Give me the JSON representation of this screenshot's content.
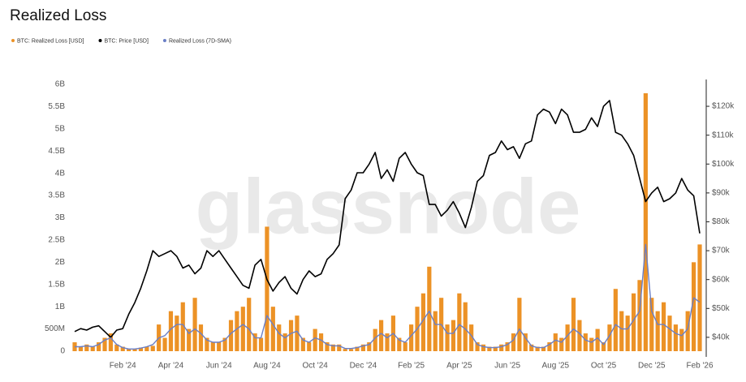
{
  "chart_data": {
    "type": "combo",
    "title": "Realized Loss",
    "watermark": "glassnode",
    "legend": "top-left",
    "grid": false,
    "categories": [
      null,
      null,
      null,
      null,
      null,
      null,
      null,
      null,
      "Feb '24",
      null,
      null,
      null,
      null,
      null,
      null,
      null,
      "Apr '24",
      null,
      null,
      null,
      null,
      null,
      null,
      null,
      "Jun '24",
      null,
      null,
      null,
      null,
      null,
      null,
      null,
      "Aug '24",
      null,
      null,
      null,
      null,
      null,
      null,
      null,
      "Oct '24",
      null,
      null,
      null,
      null,
      null,
      null,
      null,
      "Dec '24",
      null,
      null,
      null,
      null,
      null,
      null,
      null,
      "Feb '25",
      null,
      null,
      null,
      null,
      null,
      null,
      null,
      "Apr '25",
      null,
      null,
      null,
      null,
      null,
      null,
      null,
      "Jun '25",
      null,
      null,
      null,
      null,
      null,
      null,
      null,
      "Aug '25",
      null,
      null,
      null,
      null,
      null,
      null,
      null,
      "Oct '25",
      null,
      null,
      null,
      null,
      null,
      null,
      null,
      "Dec '25",
      null,
      null,
      null,
      null,
      null,
      null,
      null,
      "Feb '26"
    ],
    "ylim": [
      0,
      6000000000
    ],
    "yticks": [
      0,
      {
        "value": 500000000,
        "label": "500M"
      },
      {
        "value": 1000000000,
        "label": "1B"
      },
      {
        "value": 1500000000,
        "label": "1.5B"
      },
      {
        "value": 2000000000,
        "label": "2B"
      },
      {
        "value": 2500000000,
        "label": "2.5B"
      },
      {
        "value": 3000000000,
        "label": "3B"
      },
      {
        "value": 3500000000,
        "label": "3.5B"
      },
      {
        "value": 4000000000,
        "label": "4B"
      },
      {
        "value": 4500000000,
        "label": "4.5B"
      },
      {
        "value": 5000000000,
        "label": "5B"
      },
      {
        "value": 5500000000,
        "label": "5.5B"
      },
      {
        "value": 6000000000,
        "label": "6B"
      }
    ],
    "y2lim": [
      35200,
      127600
    ],
    "y2ticks": [
      {
        "value": 40000,
        "label": "$40k"
      },
      {
        "value": 50000,
        "label": "$50k"
      },
      {
        "value": 60000,
        "label": "$60k"
      },
      {
        "value": 70000,
        "label": "$70k"
      },
      {
        "value": 80000,
        "label": "$80k"
      },
      {
        "value": 90000,
        "label": "$90k"
      },
      {
        "value": 100000,
        "label": "$100k"
      },
      {
        "value": 110000,
        "label": "$110k"
      },
      {
        "value": 120000,
        "label": "$120k"
      }
    ],
    "series": [
      {
        "name": "BTC: Realized Loss [USD]",
        "type": "bar",
        "color": "#ec9226",
        "values": [
          200000000.0,
          100000000.0,
          150000000.0,
          100000000.0,
          200000000.0,
          300000000.0,
          400000000.0,
          150000000.0,
          100000000.0,
          50000000.0,
          50000000.0,
          80000000.0,
          100000000.0,
          120000000.0,
          600000000.0,
          300000000.0,
          900000000.0,
          800000000.0,
          1100000000.0,
          500000000.0,
          1200000000.0,
          600000000.0,
          300000000.0,
          200000000.0,
          200000000.0,
          300000000.0,
          700000000.0,
          900000000.0,
          1000000000.0,
          1200000000.0,
          400000000.0,
          300000000.0,
          2800000000.0,
          1000000000.0,
          600000000.0,
          400000000.0,
          700000000.0,
          800000000.0,
          300000000.0,
          200000000.0,
          500000000.0,
          400000000.0,
          200000000.0,
          150000000.0,
          150000000.0,
          50000000.0,
          50000000.0,
          100000000.0,
          150000000.0,
          200000000.0,
          500000000.0,
          700000000.0,
          400000000.0,
          800000000.0,
          300000000.0,
          200000000.0,
          600000000.0,
          1000000000.0,
          1300000000.0,
          1900000000.0,
          900000000.0,
          1200000000.0,
          600000000.0,
          700000000.0,
          1300000000.0,
          1100000000.0,
          600000000.0,
          200000000.0,
          150000000.0,
          100000000.0,
          100000000.0,
          150000000.0,
          200000000.0,
          400000000.0,
          1200000000.0,
          400000000.0,
          150000000.0,
          100000000.0,
          100000000.0,
          200000000.0,
          400000000.0,
          300000000.0,
          600000000.0,
          1200000000.0,
          700000000.0,
          400000000.0,
          300000000.0,
          500000000.0,
          200000000.0,
          600000000.0,
          1400000000.0,
          900000000.0,
          800000000.0,
          1300000000.0,
          1600000000.0,
          5800000000.0,
          1200000000.0,
          900000000.0,
          1100000000.0,
          800000000.0,
          600000000.0,
          500000000.0,
          900000000.0,
          2000000000.0,
          2400000000.0
        ]
      },
      {
        "name": "BTC: Price [USD]",
        "type": "line",
        "axis": "y2",
        "color": "#000000",
        "values": [
          42000,
          43000,
          42500,
          43500,
          44000,
          42000,
          40000,
          42500,
          43000,
          48000,
          52000,
          57000,
          63000,
          70000,
          68000,
          69000,
          70000,
          68000,
          64000,
          65000,
          62000,
          64000,
          70000,
          68000,
          70000,
          67000,
          64000,
          61000,
          58000,
          57000,
          65000,
          67000,
          60000,
          56000,
          59000,
          61000,
          57000,
          55000,
          60000,
          63000,
          61000,
          62000,
          67000,
          69000,
          72000,
          88000,
          91000,
          97000,
          97000,
          100000,
          104000,
          95000,
          98000,
          94000,
          102000,
          104000,
          100000,
          97000,
          96000,
          86000,
          86000,
          82000,
          84000,
          87000,
          83000,
          78000,
          85000,
          94000,
          96000,
          103000,
          104000,
          108000,
          105000,
          106000,
          102000,
          107000,
          108000,
          117000,
          119000,
          118000,
          114000,
          119000,
          117000,
          111000,
          111000,
          112000,
          116000,
          113000,
          120000,
          122000,
          111000,
          110000,
          107000,
          103000,
          95000,
          87000,
          90000,
          92000,
          87000,
          88000,
          90000,
          95000,
          91000,
          89000,
          76000
        ]
      },
      {
        "name": "Realized Loss (7D-SMA)",
        "type": "line",
        "color": "#6a7fc6",
        "values": [
          100000000.0,
          100000000.0,
          120000000.0,
          100000000.0,
          150000000.0,
          250000000.0,
          300000000.0,
          150000000.0,
          80000000.0,
          50000000.0,
          50000000.0,
          70000000.0,
          100000000.0,
          150000000.0,
          300000000.0,
          350000000.0,
          500000000.0,
          600000000.0,
          600000000.0,
          400000000.0,
          500000000.0,
          400000000.0,
          250000000.0,
          200000000.0,
          200000000.0,
          250000000.0,
          400000000.0,
          500000000.0,
          600000000.0,
          500000000.0,
          300000000.0,
          300000000.0,
          800000000.0,
          600000000.0,
          400000000.0,
          300000000.0,
          400000000.0,
          450000000.0,
          250000000.0,
          200000000.0,
          300000000.0,
          250000000.0,
          150000000.0,
          120000000.0,
          120000000.0,
          60000000.0,
          60000000.0,
          80000000.0,
          120000000.0,
          150000000.0,
          300000000.0,
          400000000.0,
          300000000.0,
          400000000.0,
          250000000.0,
          200000000.0,
          350000000.0,
          500000000.0,
          700000000.0,
          900000000.0,
          600000000.0,
          600000000.0,
          400000000.0,
          400000000.0,
          600000000.0,
          500000000.0,
          350000000.0,
          150000000.0,
          100000000.0,
          80000000.0,
          80000000.0,
          100000000.0,
          150000000.0,
          250000000.0,
          500000000.0,
          300000000.0,
          120000000.0,
          80000000.0,
          80000000.0,
          150000000.0,
          250000000.0,
          200000000.0,
          350000000.0,
          500000000.0,
          400000000.0,
          250000000.0,
          200000000.0,
          300000000.0,
          150000000.0,
          350000000.0,
          600000000.0,
          500000000.0,
          500000000.0,
          700000000.0,
          900000000.0,
          2400000000.0,
          900000000.0,
          600000000.0,
          600000000.0,
          500000000.0,
          400000000.0,
          350000000.0,
          500000000.0,
          1200000000.0,
          1100000000.0
        ]
      }
    ]
  }
}
